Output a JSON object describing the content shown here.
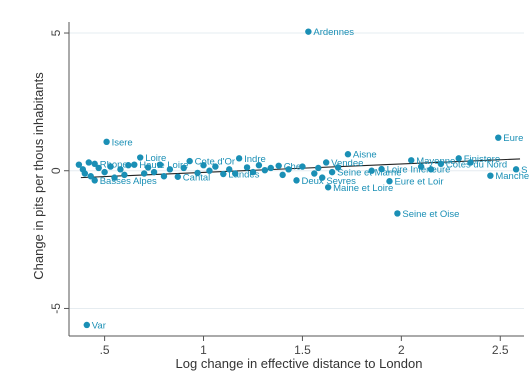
{
  "chart_data": {
    "type": "scatter",
    "title": "",
    "xlabel": "Log change in effective distance to London",
    "ylabel": "Change in pits per thous inhabitants",
    "xlim": [
      0.32,
      2.62
    ],
    "ylim": [
      -6.0,
      5.4
    ],
    "xticks": [
      0.5,
      1,
      1.5,
      2,
      2.5
    ],
    "xtick_labels": [
      ".5",
      "1",
      "1.5",
      "2",
      "2.5"
    ],
    "yticks": [
      5,
      0,
      -5
    ],
    "ytick_labels": [
      "5",
      "0",
      "-5"
    ],
    "grid": "horizontal",
    "legend": "none",
    "colors": {
      "marker": "#1a8fb5",
      "label": "#1a8fb5",
      "fit_line": "#222222",
      "grid": "#e6ecf0"
    },
    "fit_line": {
      "x": [
        0.38,
        2.6
      ],
      "y": [
        -0.25,
        0.43
      ]
    },
    "points": [
      {
        "x": 1.53,
        "y": 5.05,
        "label": "Ardennes"
      },
      {
        "x": 2.49,
        "y": 1.2,
        "label": "Eure"
      },
      {
        "x": 0.51,
        "y": 1.05,
        "label": "Isere"
      },
      {
        "x": 1.73,
        "y": 0.6,
        "label": "Aisne"
      },
      {
        "x": 0.68,
        "y": 0.48,
        "label": "Loire"
      },
      {
        "x": 1.18,
        "y": 0.45,
        "label": "Indre"
      },
      {
        "x": 0.93,
        "y": 0.35,
        "label": "Cote d'Or"
      },
      {
        "x": 2.05,
        "y": 0.38,
        "label": "Mayenne"
      },
      {
        "x": 2.29,
        "y": 0.45,
        "label": "Finistere"
      },
      {
        "x": 1.62,
        "y": 0.3,
        "label": "Vendee"
      },
      {
        "x": 2.2,
        "y": 0.25,
        "label": "Cotes du Nord"
      },
      {
        "x": 2.58,
        "y": 0.05,
        "label": "S"
      },
      {
        "x": 2.45,
        "y": -0.18,
        "label": "Manche"
      },
      {
        "x": 1.9,
        "y": 0.06,
        "label": "Loire Inferieure"
      },
      {
        "x": 1.94,
        "y": -0.38,
        "label": "Eure et Loir"
      },
      {
        "x": 1.65,
        "y": -0.05,
        "label": "Seine et Marne"
      },
      {
        "x": 1.47,
        "y": -0.35,
        "label": "Deux Sevres"
      },
      {
        "x": 1.63,
        "y": -0.6,
        "label": "Maine et Loire"
      },
      {
        "x": 1.98,
        "y": -1.55,
        "label": "Seine et Oise"
      },
      {
        "x": 0.45,
        "y": -0.35,
        "label": "Basses Alpes"
      },
      {
        "x": 1.1,
        "y": -0.12,
        "label": "Landes"
      },
      {
        "x": 0.87,
        "y": -0.22,
        "label": "Cantal"
      },
      {
        "x": 0.45,
        "y": 0.25,
        "label": "Rhone"
      },
      {
        "x": 0.65,
        "y": 0.22,
        "label": "Haute Loire"
      },
      {
        "x": 1.38,
        "y": 0.18,
        "label": "Cher"
      },
      {
        "x": 0.41,
        "y": -5.6,
        "label": "Var"
      },
      {
        "x": 0.37,
        "y": 0.22,
        "label": ""
      },
      {
        "x": 0.39,
        "y": 0.05,
        "label": ""
      },
      {
        "x": 0.4,
        "y": -0.1,
        "label": ""
      },
      {
        "x": 0.42,
        "y": 0.3,
        "label": ""
      },
      {
        "x": 0.43,
        "y": -0.2,
        "label": ""
      },
      {
        "x": 0.47,
        "y": 0.1,
        "label": ""
      },
      {
        "x": 0.5,
        "y": -0.05,
        "label": ""
      },
      {
        "x": 0.53,
        "y": 0.15,
        "label": ""
      },
      {
        "x": 0.55,
        "y": -0.25,
        "label": ""
      },
      {
        "x": 0.58,
        "y": 0.05,
        "label": ""
      },
      {
        "x": 0.6,
        "y": -0.15,
        "label": ""
      },
      {
        "x": 0.62,
        "y": 0.2,
        "label": ""
      },
      {
        "x": 0.7,
        "y": -0.1,
        "label": ""
      },
      {
        "x": 0.72,
        "y": 0.12,
        "label": ""
      },
      {
        "x": 0.75,
        "y": -0.05,
        "label": ""
      },
      {
        "x": 0.78,
        "y": 0.22,
        "label": ""
      },
      {
        "x": 0.8,
        "y": -0.2,
        "label": ""
      },
      {
        "x": 0.83,
        "y": 0.05,
        "label": ""
      },
      {
        "x": 0.9,
        "y": 0.1,
        "label": ""
      },
      {
        "x": 0.97,
        "y": -0.08,
        "label": ""
      },
      {
        "x": 1.0,
        "y": 0.2,
        "label": ""
      },
      {
        "x": 1.03,
        "y": 0.0,
        "label": ""
      },
      {
        "x": 1.06,
        "y": 0.15,
        "label": ""
      },
      {
        "x": 1.13,
        "y": 0.05,
        "label": ""
      },
      {
        "x": 1.16,
        "y": -0.1,
        "label": ""
      },
      {
        "x": 1.22,
        "y": 0.12,
        "label": ""
      },
      {
        "x": 1.25,
        "y": -0.05,
        "label": ""
      },
      {
        "x": 1.28,
        "y": 0.2,
        "label": ""
      },
      {
        "x": 1.31,
        "y": 0.02,
        "label": ""
      },
      {
        "x": 1.34,
        "y": 0.1,
        "label": ""
      },
      {
        "x": 1.4,
        "y": -0.15,
        "label": ""
      },
      {
        "x": 1.43,
        "y": 0.05,
        "label": ""
      },
      {
        "x": 1.5,
        "y": 0.15,
        "label": ""
      },
      {
        "x": 1.56,
        "y": -0.1,
        "label": ""
      },
      {
        "x": 1.58,
        "y": 0.1,
        "label": ""
      },
      {
        "x": 1.6,
        "y": -0.25,
        "label": ""
      },
      {
        "x": 1.68,
        "y": 0.12,
        "label": ""
      },
      {
        "x": 1.85,
        "y": 0.0,
        "label": ""
      },
      {
        "x": 2.1,
        "y": 0.15,
        "label": ""
      },
      {
        "x": 2.15,
        "y": 0.05,
        "label": ""
      },
      {
        "x": 2.35,
        "y": 0.3,
        "label": ""
      }
    ]
  }
}
